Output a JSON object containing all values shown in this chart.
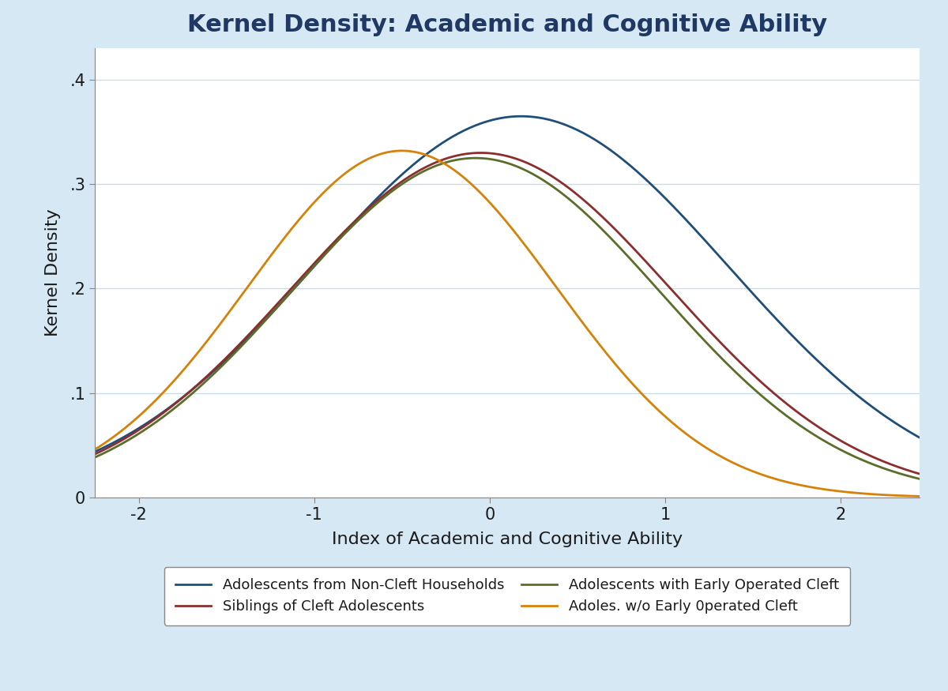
{
  "title": "Kernel Density: Academic and Cognitive Ability",
  "xlabel": "Index of Academic and Cognitive Ability",
  "ylabel": "Kernel Density",
  "background_color": "#d6e8f4",
  "plot_bg_color": "#ffffff",
  "xlim": [
    -2.25,
    2.45
  ],
  "ylim": [
    0,
    0.43
  ],
  "xticks": [
    -2,
    -1,
    0,
    1,
    2
  ],
  "yticks": [
    0,
    0.1,
    0.2,
    0.3,
    0.4
  ],
  "ytick_labels": [
    "0",
    ".1",
    ".2",
    ".3",
    ".4"
  ],
  "title_color": "#1f3864",
  "title_fontsize": 22,
  "label_fontsize": 16,
  "tick_fontsize": 15,
  "series": [
    {
      "label": "Adolescents from Non-Cleft Households",
      "color": "#1f4e79",
      "mean": 0.18,
      "std": 1.18,
      "amplitude": 0.365
    },
    {
      "label": "Siblings of Cleft Adolescents",
      "color": "#8b2e2e",
      "mean": -0.05,
      "std": 1.08,
      "amplitude": 0.33
    },
    {
      "label": "Adolescents with Early Operated Cleft",
      "color": "#5a6e2a",
      "mean": -0.08,
      "std": 1.05,
      "amplitude": 0.325
    },
    {
      "label": "Adoles. w/o Early 0perated Cleft",
      "color": "#d4820a",
      "mean": -0.5,
      "std": 0.88,
      "amplitude": 0.332
    }
  ],
  "legend_ncol": 2,
  "line_width": 2.0
}
